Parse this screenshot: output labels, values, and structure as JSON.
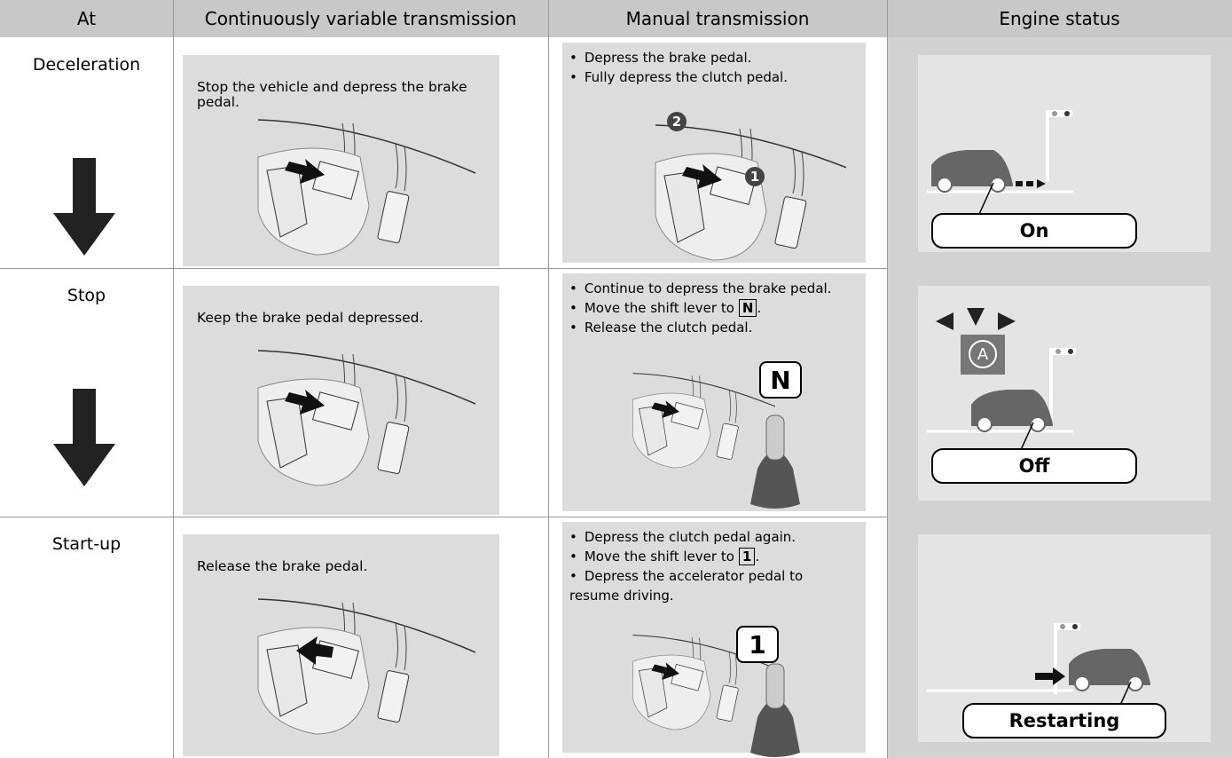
{
  "table": {
    "header": [
      "At",
      "Continuously variable transmission",
      "Manual transmission",
      "Engine status"
    ],
    "rows": [
      {
        "at": "Deceleration",
        "cvt": "Stop the vehicle and depress the brake pedal.",
        "manual": [
          {
            "text": "Depress the brake pedal."
          },
          {
            "text": "Fully depress the clutch pedal."
          }
        ],
        "callouts": [
          "2",
          "1"
        ],
        "engine": "On"
      },
      {
        "at": "Stop",
        "cvt": "Keep the brake pedal depressed.",
        "manual": [
          {
            "text": "Continue to depress the brake pedal."
          },
          {
            "text": "Move the shift lever to",
            "key": "N",
            "suffix": "."
          },
          {
            "text": "Release the clutch pedal."
          }
        ],
        "callouts": [
          "N"
        ],
        "engine": "Off"
      },
      {
        "at": "Start-up",
        "cvt": "Release the brake pedal.",
        "manual": [
          {
            "text": "Depress the clutch pedal again."
          },
          {
            "text": "Move the shift lever to",
            "key": "1",
            "suffix": "."
          },
          {
            "text": "Depress the accelerator pedal to resume driving."
          }
        ],
        "callouts": [
          "1"
        ],
        "engine": "Restarting"
      }
    ]
  }
}
